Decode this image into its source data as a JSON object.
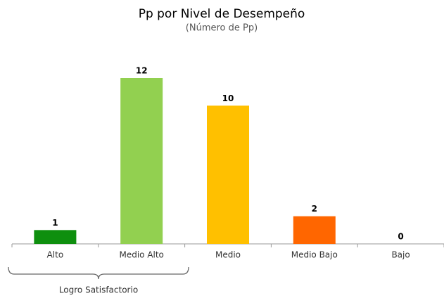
{
  "chart_data": {
    "type": "bar",
    "title": "Pp por Nivel de Desempeño",
    "subtitle": "(Número de Pp)",
    "categories": [
      "Alto",
      "Medio Alto",
      "Medio",
      "Medio Bajo",
      "Bajo"
    ],
    "values": [
      1,
      12,
      10,
      2,
      0
    ],
    "colors": [
      "#0e8f0e",
      "#92d050",
      "#ffc000",
      "#ff6600",
      "#c00000"
    ],
    "annotation": "Logro Satisfactorio"
  }
}
